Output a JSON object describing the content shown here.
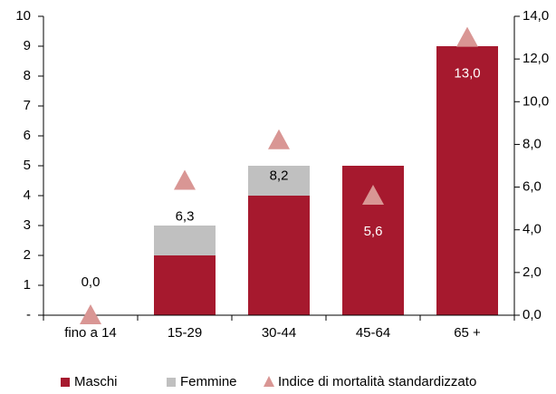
{
  "chart_data": {
    "type": "bar",
    "categories": [
      "fino a 14",
      "15-29",
      "30-44",
      "45-64",
      "65 +"
    ],
    "series": [
      {
        "name": "Maschi",
        "color": "#a6192e",
        "values": [
          0,
          2,
          4,
          5,
          9
        ]
      },
      {
        "name": "Femmine",
        "color": "#c0c0c0",
        "values": [
          0,
          1,
          1,
          0,
          0
        ]
      },
      {
        "name": "Indice di mortalità standardizzato",
        "color": "#d99694",
        "axis": "y2",
        "marker": "triangle",
        "values": [
          0.0,
          6.3,
          8.2,
          5.6,
          13.0
        ],
        "value_labels": [
          "0,0",
          "6,3",
          "8,2",
          "5,6",
          "13,0"
        ]
      }
    ],
    "ylim": [
      0,
      10
    ],
    "yticks": [
      {
        "value": 0,
        "label": "-"
      },
      1,
      2,
      3,
      4,
      5,
      6,
      7,
      8,
      9,
      10
    ],
    "y2lim": [
      0,
      14
    ],
    "y2ticks": [
      {
        "value": 0,
        "label": "0,0"
      },
      {
        "value": 2,
        "label": "2,0"
      },
      {
        "value": 4,
        "label": "4,0"
      },
      {
        "value": 6,
        "label": "6,0"
      },
      {
        "value": 8,
        "label": "8,0"
      },
      {
        "value": 10,
        "label": "10,0"
      },
      {
        "value": 12,
        "label": "12,0"
      },
      {
        "value": 14,
        "label": "14,0"
      }
    ],
    "stacked": true,
    "legend": "bottom"
  }
}
